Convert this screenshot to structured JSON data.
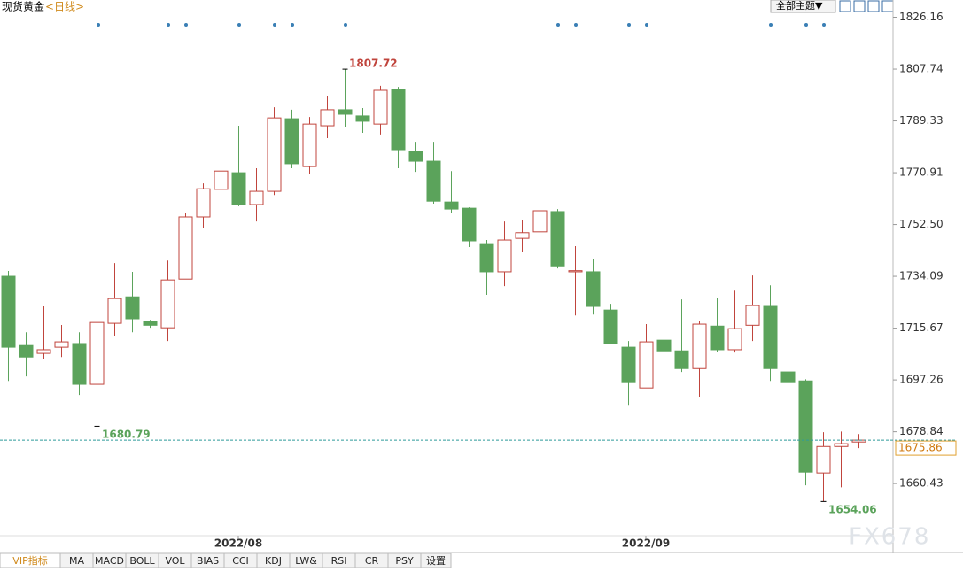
{
  "header": {
    "title": "现货黄金",
    "period": "<日线>",
    "theme_button": "全部主题▼"
  },
  "tabs": [
    "VIP指标",
    "MA",
    "MACD",
    "BOLL",
    "VOL",
    "BIAS",
    "CCI",
    "KDJ",
    "LW&",
    "RSI",
    "CR",
    "PSY",
    "设置"
  ],
  "watermark": "FX678",
  "chart_data": {
    "type": "candlestick",
    "categories": [
      null,
      null,
      null,
      null,
      null,
      null,
      null,
      null,
      null,
      null,
      null,
      null,
      null,
      "2022/08",
      null,
      null,
      null,
      null,
      null,
      null,
      null,
      null,
      null,
      null,
      null,
      null,
      null,
      null,
      null,
      null,
      null,
      null,
      null,
      null,
      null,
      null,
      "2022/09",
      null,
      null,
      null,
      null,
      null,
      null,
      null,
      null,
      null,
      null,
      null,
      null
    ],
    "open": [
      1734.1,
      1709.5,
      1706.7,
      1708.9,
      1710.2,
      1695.7,
      1717.4,
      1726.8,
      1718.0,
      1715.8,
      1733.1,
      1755.2,
      1765.0,
      1770.9,
      1759.6,
      1764.3,
      1790.1,
      1773.1,
      1787.6,
      1793.3,
      1791.1,
      1788.2,
      1800.5,
      1778.5,
      1775.0,
      1760.5,
      1758.3,
      1745.4,
      1735.7,
      1747.6,
      1749.9,
      1757.1,
      1735.7,
      1735.7,
      1722.1,
      1708.9,
      1694.4,
      1711.4,
      1707.6,
      1701.3,
      1716.4,
      1708.0,
      1716.7,
      1723.4,
      1700.1,
      1696.9,
      1664.2,
      1673.6,
      1675.2
    ],
    "high": [
      1736.0,
      1714.2,
      1723.4,
      1716.8,
      1714.2,
      1720.5,
      1738.8,
      1735.7,
      1718.6,
      1739.7,
      1756.7,
      1767.1,
      1774.7,
      1787.6,
      1772.5,
      1794.2,
      1793.3,
      1790.7,
      1798.3,
      1807.72,
      1793.9,
      1801.8,
      1801.4,
      1781.9,
      1781.9,
      1771.5,
      1758.6,
      1747.0,
      1753.6,
      1754.2,
      1764.9,
      1758.0,
      1744.8,
      1740.4,
      1724.3,
      1711.1,
      1717.1,
      1711.4,
      1725.9,
      1718.3,
      1726.5,
      1729.0,
      1734.4,
      1730.9,
      1700.1,
      1697.5,
      1678.7,
      1678.9,
      1678.0
    ],
    "low": [
      1696.9,
      1698.5,
      1704.8,
      1705.4,
      1691.9,
      1680.79,
      1712.7,
      1714.2,
      1715.8,
      1711.1,
      1733.1,
      1751.1,
      1758.0,
      1759.0,
      1753.6,
      1763.0,
      1772.5,
      1770.6,
      1783.2,
      1787.3,
      1785.1,
      1784.5,
      1772.5,
      1771.2,
      1759.9,
      1756.7,
      1744.5,
      1727.5,
      1730.6,
      1742.6,
      1749.6,
      1736.9,
      1720.2,
      1720.5,
      1710.2,
      1688.4,
      1694.4,
      1707.6,
      1700.1,
      1691.3,
      1707.3,
      1707.0,
      1711.1,
      1696.9,
      1692.8,
      1659.8,
      1654.06,
      1659.1,
      1673.0
    ],
    "close": [
      1708.9,
      1705.4,
      1708.0,
      1710.8,
      1695.7,
      1717.7,
      1726.2,
      1719.0,
      1716.7,
      1732.8,
      1755.2,
      1765.2,
      1771.5,
      1759.6,
      1764.3,
      1790.4,
      1774.1,
      1788.2,
      1793.3,
      1791.7,
      1789.2,
      1800.2,
      1779.1,
      1775.0,
      1760.8,
      1758.0,
      1746.7,
      1735.7,
      1747.0,
      1749.6,
      1757.4,
      1737.8,
      1736.1,
      1723.4,
      1710.2,
      1696.6,
      1710.8,
      1707.6,
      1701.3,
      1717.1,
      1708.0,
      1715.5,
      1723.7,
      1701.3,
      1696.6,
      1664.5,
      1673.6,
      1674.6,
      1675.86
    ],
    "up_color": "#c0443c",
    "down_color": "#5ba35b",
    "last_price_color": "#2f9a9a",
    "ylim": [
      1641.9,
      1832.3
    ],
    "yticks": [
      1660.43,
      1678.84,
      1697.26,
      1715.67,
      1734.09,
      {
        "value": 1752.5,
        "label": "1752.50"
      },
      1770.91,
      1789.33,
      1807.74,
      1826.16
    ],
    "last_price_line": true
  }
}
